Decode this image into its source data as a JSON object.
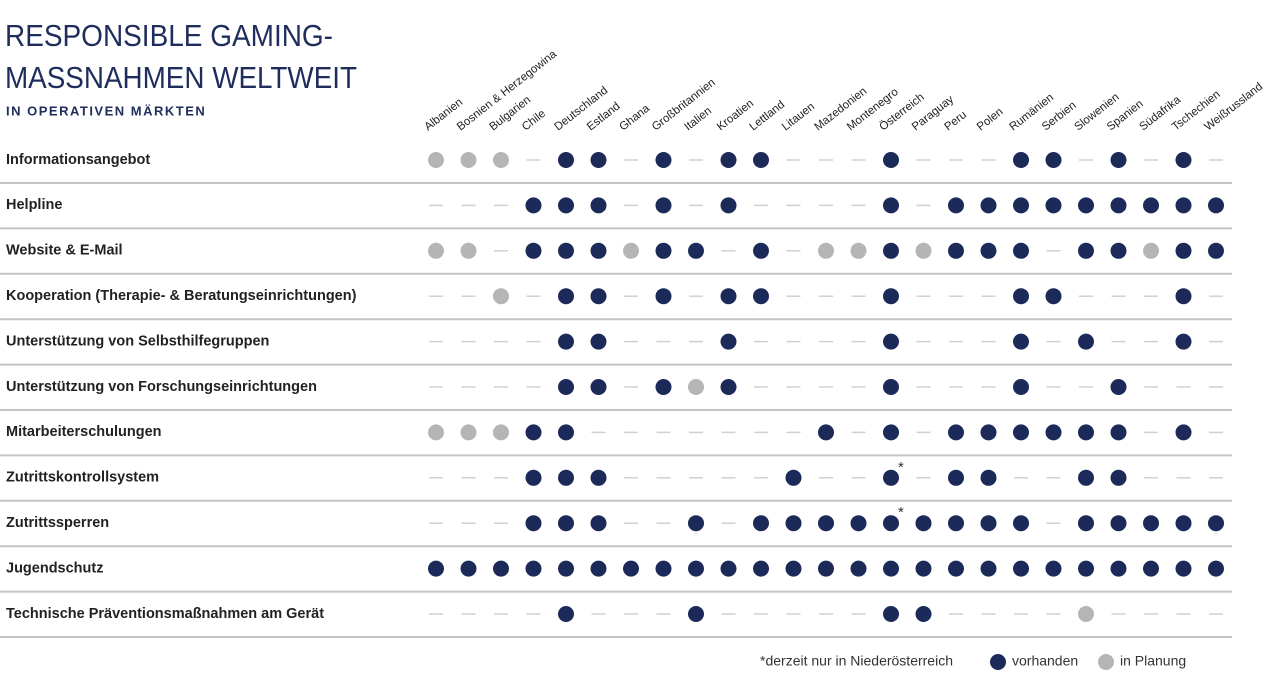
{
  "header": {
    "title_lines": [
      "RESPONSIBLE GAMING-",
      "MASSNAHMEN WELTWEIT"
    ],
    "subtitle": "IN OPERATIVEN MÄRKTEN"
  },
  "table": {
    "columns": [
      "Albanien",
      "Bosnien & Herzegowina",
      "Bulgarien",
      "Chile",
      "Deutschland",
      "Estland",
      "Ghana",
      "Großbritannien",
      "Italien",
      "Kroatien",
      "Lettland",
      "Litauen",
      "Mazedonien",
      "Montenegro",
      "Österreich",
      "Paraguay",
      "Peru",
      "Polen",
      "Rumänien",
      "Serbien",
      "Slowenien",
      "Spanien",
      "Südafrika",
      "Tschechien",
      "Weißrussland"
    ],
    "note_marker": "*",
    "rows": [
      {
        "label": "Informationsangebot",
        "cells": [
          "p",
          "p",
          "p",
          "-",
          "v",
          "v",
          "-",
          "v",
          "-",
          "v",
          "v",
          "-",
          "-",
          "-",
          "v",
          "-",
          "-",
          "-",
          "v",
          "v",
          "-",
          "v",
          "-",
          "v",
          "-"
        ]
      },
      {
        "label": "Helpline",
        "cells": [
          "-",
          "-",
          "-",
          "v",
          "v",
          "v",
          "-",
          "v",
          "-",
          "v",
          "-",
          "-",
          "-",
          "-",
          "v",
          "-",
          "v",
          "v",
          "v",
          "v",
          "v",
          "v",
          "v",
          "v",
          "v"
        ]
      },
      {
        "label": "Website & E-Mail",
        "cells": [
          "p",
          "p",
          "-",
          "v",
          "v",
          "v",
          "p",
          "v",
          "v",
          "-",
          "v",
          "-",
          "p",
          "p",
          "v",
          "p",
          "v",
          "v",
          "v",
          "-",
          "v",
          "v",
          "p",
          "v",
          "v"
        ]
      },
      {
        "label": "Kooperation (Therapie- & Beratungseinrichtungen)",
        "cells": [
          "-",
          "-",
          "p",
          "-",
          "v",
          "v",
          "-",
          "v",
          "-",
          "v",
          "v",
          "-",
          "-",
          "-",
          "v",
          "-",
          "-",
          "-",
          "v",
          "v",
          "-",
          "-",
          "-",
          "v",
          "-"
        ]
      },
      {
        "label": "Unterstützung von Selbsthilfegruppen",
        "cells": [
          "-",
          "-",
          "-",
          "-",
          "v",
          "v",
          "-",
          "-",
          "-",
          "v",
          "-",
          "-",
          "-",
          "-",
          "v",
          "-",
          "-",
          "-",
          "v",
          "-",
          "v",
          "-",
          "-",
          "v",
          "-"
        ]
      },
      {
        "label": "Unterstützung von Forschungseinrichtungen",
        "cells": [
          "-",
          "-",
          "-",
          "-",
          "v",
          "v",
          "-",
          "v",
          "p",
          "v",
          "-",
          "-",
          "-",
          "-",
          "v",
          "-",
          "-",
          "-",
          "v",
          "-",
          "-",
          "v",
          "-",
          "-",
          "-"
        ]
      },
      {
        "label": "Mitarbeiterschulungen",
        "cells": [
          "p",
          "p",
          "p",
          "v",
          "v",
          "-",
          "-",
          "-",
          "-",
          "-",
          "-",
          "-",
          "v",
          "-",
          "v",
          "-",
          "v",
          "v",
          "v",
          "v",
          "v",
          "v",
          "-",
          "v",
          "-"
        ]
      },
      {
        "label": "Zutrittskontrollsystem",
        "cells": [
          "-",
          "-",
          "-",
          "v",
          "v",
          "v",
          "-",
          "-",
          "-",
          "-",
          "-",
          "v",
          "-",
          "-",
          "v",
          "-",
          "v",
          "v",
          "-",
          "-",
          "v",
          "v",
          "-",
          "-",
          "-"
        ],
        "notes": [
          14
        ]
      },
      {
        "label": "Zutrittssperren",
        "cells": [
          "-",
          "-",
          "-",
          "v",
          "v",
          "v",
          "-",
          "-",
          "v",
          "-",
          "v",
          "v",
          "v",
          "v",
          "v",
          "v",
          "v",
          "v",
          "v",
          "-",
          "v",
          "v",
          "v",
          "v",
          "v"
        ],
        "notes": [
          14
        ]
      },
      {
        "label": "Jugendschutz",
        "cells": [
          "v",
          "v",
          "v",
          "v",
          "v",
          "v",
          "v",
          "v",
          "v",
          "v",
          "v",
          "v",
          "v",
          "v",
          "v",
          "v",
          "v",
          "v",
          "v",
          "v",
          "v",
          "v",
          "v",
          "v",
          "v"
        ]
      },
      {
        "label": "Technische Präventionsmaßnahmen am Gerät",
        "cells": [
          "-",
          "-",
          "-",
          "-",
          "v",
          "-",
          "-",
          "-",
          "v",
          "-",
          "-",
          "-",
          "-",
          "-",
          "v",
          "v",
          "-",
          "-",
          "-",
          "-",
          "p",
          "-",
          "-",
          "-",
          "-"
        ]
      }
    ]
  },
  "legend": {
    "note": "*derzeit nur in Niederösterreich",
    "present": "vorhanden",
    "planned": "in Planung"
  }
}
